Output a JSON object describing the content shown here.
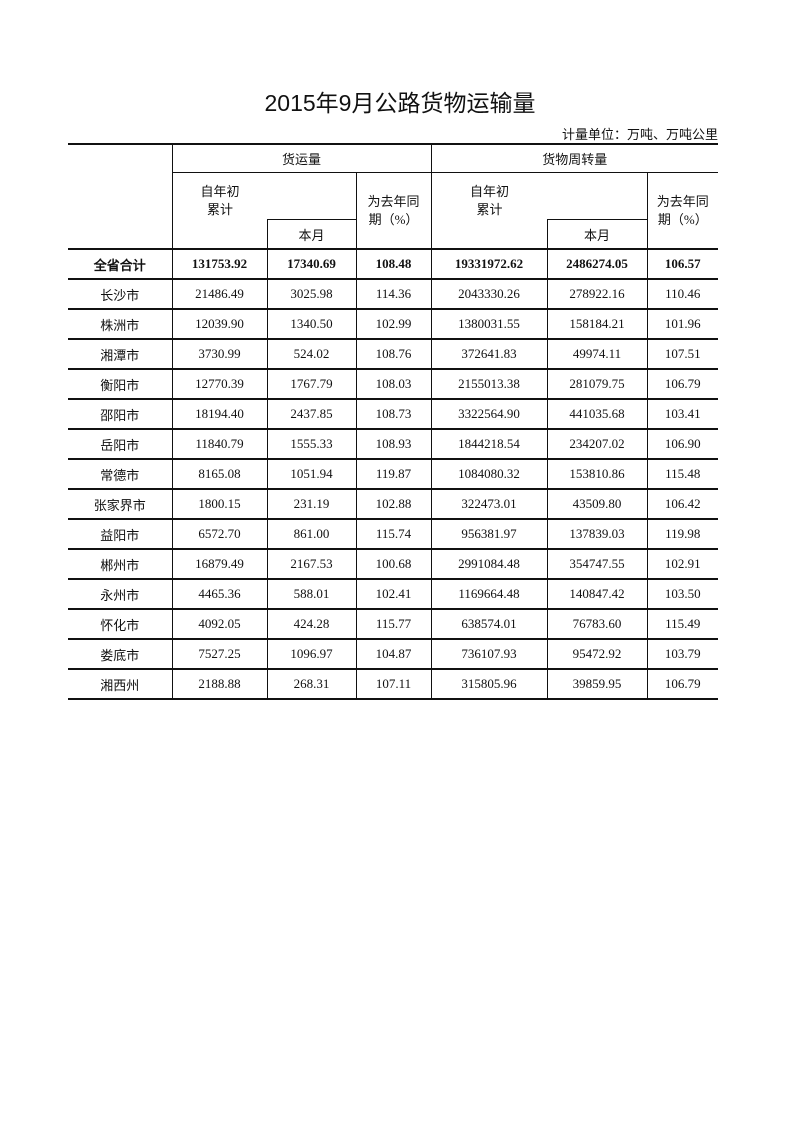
{
  "title": "2015年9月公路货物运输量",
  "unit": "计量单位：万吨、万吨公里",
  "header": {
    "group1": "货运量",
    "group2": "货物周转量",
    "cumulative_line1": "自年初",
    "cumulative_line2": "累计",
    "month": "本月",
    "ratio_line1": "为去年同",
    "ratio_line2": "期（%）"
  },
  "rows": [
    {
      "region": "全省合计",
      "c1": "131753.92",
      "c2": "17340.69",
      "c3": "108.48",
      "c4": "19331972.62",
      "c5": "2486274.05",
      "c6": "106.57"
    },
    {
      "region": "长沙市",
      "c1": "21486.49",
      "c2": "3025.98",
      "c3": "114.36",
      "c4": "2043330.26",
      "c5": "278922.16",
      "c6": "110.46"
    },
    {
      "region": "株洲市",
      "c1": "12039.90",
      "c2": "1340.50",
      "c3": "102.99",
      "c4": "1380031.55",
      "c5": "158184.21",
      "c6": "101.96"
    },
    {
      "region": "湘潭市",
      "c1": "3730.99",
      "c2": "524.02",
      "c3": "108.76",
      "c4": "372641.83",
      "c5": "49974.11",
      "c6": "107.51"
    },
    {
      "region": "衡阳市",
      "c1": "12770.39",
      "c2": "1767.79",
      "c3": "108.03",
      "c4": "2155013.38",
      "c5": "281079.75",
      "c6": "106.79"
    },
    {
      "region": "邵阳市",
      "c1": "18194.40",
      "c2": "2437.85",
      "c3": "108.73",
      "c4": "3322564.90",
      "c5": "441035.68",
      "c6": "103.41"
    },
    {
      "region": "岳阳市",
      "c1": "11840.79",
      "c2": "1555.33",
      "c3": "108.93",
      "c4": "1844218.54",
      "c5": "234207.02",
      "c6": "106.90"
    },
    {
      "region": "常德市",
      "c1": "8165.08",
      "c2": "1051.94",
      "c3": "119.87",
      "c4": "1084080.32",
      "c5": "153810.86",
      "c6": "115.48"
    },
    {
      "region": "张家界市",
      "c1": "1800.15",
      "c2": "231.19",
      "c3": "102.88",
      "c4": "322473.01",
      "c5": "43509.80",
      "c6": "106.42"
    },
    {
      "region": "益阳市",
      "c1": "6572.70",
      "c2": "861.00",
      "c3": "115.74",
      "c4": "956381.97",
      "c5": "137839.03",
      "c6": "119.98"
    },
    {
      "region": "郴州市",
      "c1": "16879.49",
      "c2": "2167.53",
      "c3": "100.68",
      "c4": "2991084.48",
      "c5": "354747.55",
      "c6": "102.91"
    },
    {
      "region": "永州市",
      "c1": "4465.36",
      "c2": "588.01",
      "c3": "102.41",
      "c4": "1169664.48",
      "c5": "140847.42",
      "c6": "103.50"
    },
    {
      "region": "怀化市",
      "c1": "4092.05",
      "c2": "424.28",
      "c3": "115.77",
      "c4": "638574.01",
      "c5": "76783.60",
      "c6": "115.49"
    },
    {
      "region": "娄底市",
      "c1": "7527.25",
      "c2": "1096.97",
      "c3": "104.87",
      "c4": "736107.93",
      "c5": "95472.92",
      "c6": "103.79"
    },
    {
      "region": "湘西州",
      "c1": "2188.88",
      "c2": "268.31",
      "c3": "107.11",
      "c4": "315805.96",
      "c5": "39859.95",
      "c6": "106.79"
    }
  ]
}
